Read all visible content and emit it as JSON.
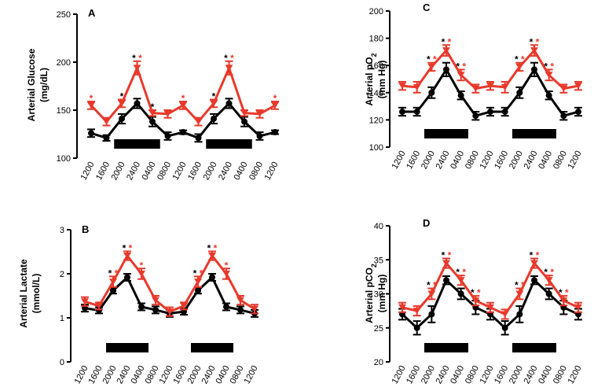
{
  "colors": {
    "control": "#000000",
    "treated": "#e8392b",
    "bar": "#000000"
  },
  "chart_data": [
    {
      "id": "A",
      "letter": "A",
      "type": "line",
      "ylabel": "Arterial Glucose",
      "ylabel_sub": "",
      "ylabel2": "(mg/dL)",
      "ylim": [
        100,
        250
      ],
      "yticks": [
        100,
        150,
        200,
        250
      ],
      "categories": [
        "1200",
        "1600",
        "2000",
        "2400",
        "0400",
        "0800",
        "1200",
        "1600",
        "2000",
        "2400",
        "0400",
        "0800",
        "1200"
      ],
      "series": [
        {
          "name": "control",
          "values": [
            126,
            121,
            141,
            157,
            138,
            123,
            127,
            121,
            141,
            157,
            138,
            123,
            127
          ],
          "errors": [
            4,
            3,
            5,
            5,
            5,
            4,
            2,
            4,
            5,
            5,
            5,
            4,
            2
          ]
        },
        {
          "name": "treated",
          "values": [
            155,
            138,
            157,
            194,
            147,
            146,
            155,
            138,
            157,
            194,
            147,
            146,
            155
          ],
          "errors": [
            4,
            4,
            4,
            7,
            3,
            4,
            4,
            4,
            4,
            7,
            3,
            4,
            4
          ]
        }
      ],
      "markers": [
        {
          "index": 0,
          "stars": [
            "treated"
          ]
        },
        {
          "index": 2,
          "stars": [
            "control"
          ]
        },
        {
          "index": 3,
          "stars": [
            "control",
            "treated"
          ]
        },
        {
          "index": 4,
          "stars": [
            "control"
          ]
        },
        {
          "index": 6,
          "stars": [
            "treated"
          ]
        },
        {
          "index": 8,
          "stars": [
            "control"
          ]
        },
        {
          "index": 9,
          "stars": [
            "control",
            "treated"
          ]
        },
        {
          "index": 12,
          "stars": [
            "treated"
          ]
        }
      ],
      "star_symbol": "*",
      "dark_periods": [
        [
          1.5,
          4.5
        ],
        [
          7.5,
          10.5
        ]
      ]
    },
    {
      "id": "B",
      "letter": "B",
      "type": "line",
      "ylabel": "Arterial Lactate",
      "ylabel_sub": "",
      "ylabel2": "(mmol/L)",
      "ylim": [
        0,
        3
      ],
      "yticks": [
        0,
        1,
        2,
        3
      ],
      "categories": [
        "1200",
        "1600",
        "2000",
        "2400",
        "0400",
        "0800",
        "1200",
        "1600",
        "2000",
        "2400",
        "0400",
        "0800",
        "1200"
      ],
      "series": [
        {
          "name": "control",
          "values": [
            1.22,
            1.17,
            1.62,
            1.92,
            1.25,
            1.18,
            1.1,
            1.14,
            1.62,
            1.92,
            1.25,
            1.18,
            1.1
          ],
          "errors": [
            0.08,
            0.07,
            0.07,
            0.08,
            0.08,
            0.08,
            0.08,
            0.07,
            0.07,
            0.08,
            0.08,
            0.08,
            0.08
          ]
        },
        {
          "name": "treated",
          "values": [
            1.37,
            1.27,
            1.82,
            2.41,
            2.0,
            1.4,
            1.14,
            1.27,
            1.82,
            2.41,
            2.0,
            1.4,
            1.2
          ],
          "errors": [
            0.1,
            0.08,
            0.12,
            0.1,
            0.12,
            0.1,
            0.1,
            0.08,
            0.12,
            0.1,
            0.12,
            0.1,
            0.1
          ]
        }
      ],
      "markers": [
        {
          "index": 2,
          "stars": [
            "control",
            "treated"
          ]
        },
        {
          "index": 3,
          "stars": [
            "control",
            "treated"
          ]
        },
        {
          "index": 4,
          "stars": [
            "treated"
          ]
        },
        {
          "index": 8,
          "stars": [
            "control",
            "treated"
          ]
        },
        {
          "index": 9,
          "stars": [
            "control",
            "treated"
          ]
        },
        {
          "index": 10,
          "stars": [
            "treated"
          ]
        }
      ],
      "star_symbol": "*",
      "dark_periods": [
        [
          1.5,
          4.5
        ],
        [
          7.5,
          10.5
        ]
      ]
    },
    {
      "id": "C",
      "letter": "C",
      "type": "line",
      "ylabel": "Arterial pO",
      "ylabel_sub": "2",
      "ylabel2": "(mm Hg)",
      "ylim": [
        100,
        200
      ],
      "yticks": [
        100,
        120,
        140,
        160,
        180,
        200
      ],
      "categories": [
        "1200",
        "1600",
        "2000",
        "2400",
        "0400",
        "0800",
        "1200",
        "1600",
        "2000",
        "2400",
        "0400",
        "0800",
        "1200"
      ],
      "series": [
        {
          "name": "control",
          "values": [
            126,
            126,
            140,
            157,
            138,
            123,
            126,
            126,
            140,
            157,
            138,
            123,
            126
          ],
          "errors": [
            3,
            3,
            4,
            5,
            3,
            3,
            3,
            3,
            4,
            5,
            3,
            3,
            3
          ]
        },
        {
          "name": "treated",
          "values": [
            145,
            144,
            159,
            171,
            153,
            143,
            145,
            144,
            159,
            171,
            153,
            143,
            145
          ],
          "errors": [
            3,
            4,
            3,
            4,
            4,
            3,
            3,
            4,
            3,
            4,
            4,
            3,
            3
          ]
        }
      ],
      "markers": [
        {
          "index": 2,
          "stars": [
            "control",
            "treated"
          ]
        },
        {
          "index": 3,
          "stars": [
            "control",
            "treated"
          ]
        },
        {
          "index": 4,
          "stars": [
            "control",
            "treated"
          ]
        },
        {
          "index": 8,
          "stars": [
            "control",
            "treated"
          ]
        },
        {
          "index": 9,
          "stars": [
            "control",
            "treated"
          ]
        },
        {
          "index": 10,
          "stars": [
            "control",
            "treated"
          ]
        }
      ],
      "star_symbol": "*",
      "dark_periods": [
        [
          1.5,
          4.5
        ],
        [
          7.5,
          10.5
        ]
      ]
    },
    {
      "id": "D",
      "letter": "D",
      "type": "line",
      "ylabel": "Arterial pCO",
      "ylabel_sub": "2",
      "ylabel2": "(mm Hg)",
      "ylim": [
        20,
        40
      ],
      "yticks": [
        20,
        25,
        30,
        35,
        40
      ],
      "categories": [
        "1200",
        "1600",
        "2000",
        "2400",
        "0400",
        "0800",
        "1200",
        "1600",
        "2000",
        "2400",
        "0400",
        "0800",
        "1200"
      ],
      "series": [
        {
          "name": "control",
          "values": [
            27,
            25,
            27,
            32,
            30,
            28,
            27,
            25,
            27,
            32,
            30,
            28,
            27
          ],
          "errors": [
            0.8,
            1.0,
            1.2,
            0.6,
            0.8,
            1.0,
            0.8,
            1.0,
            1.2,
            0.6,
            0.8,
            1.0,
            0.8
          ]
        },
        {
          "name": "treated",
          "values": [
            28,
            27.5,
            30,
            34.5,
            32,
            29,
            28,
            27,
            30,
            34.5,
            32,
            29,
            28
          ],
          "errors": [
            0.7,
            0.7,
            0.8,
            0.7,
            0.7,
            0.7,
            0.7,
            0.7,
            0.8,
            0.7,
            0.7,
            0.7,
            0.7
          ]
        }
      ],
      "markers": [
        {
          "index": 2,
          "stars": [
            "control",
            "treated"
          ]
        },
        {
          "index": 3,
          "stars": [
            "control",
            "treated"
          ]
        },
        {
          "index": 4,
          "stars": [
            "control",
            "treated"
          ]
        },
        {
          "index": 5,
          "stars": [
            "control",
            "treated"
          ]
        },
        {
          "index": 8,
          "stars": [
            "control",
            "treated"
          ]
        },
        {
          "index": 9,
          "stars": [
            "control",
            "treated"
          ]
        },
        {
          "index": 10,
          "stars": [
            "control",
            "treated"
          ]
        },
        {
          "index": 11,
          "stars": [
            "control",
            "treated"
          ]
        }
      ],
      "star_symbol": "*",
      "dark_periods": [
        [
          1.5,
          4.5
        ],
        [
          7.5,
          10.5
        ]
      ]
    }
  ]
}
